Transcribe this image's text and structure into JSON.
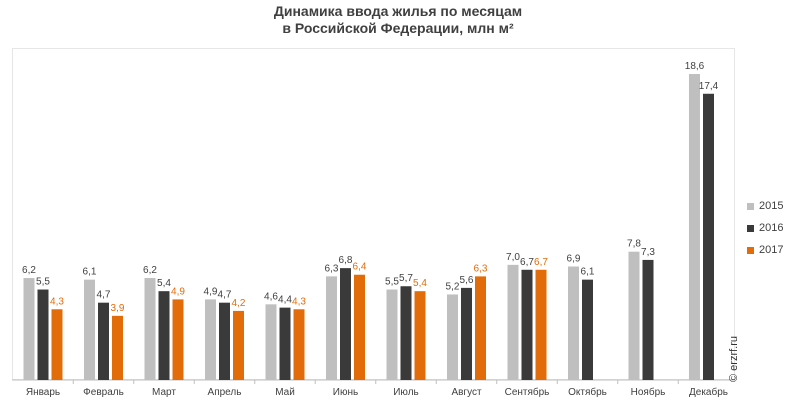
{
  "chart_data": {
    "type": "bar",
    "title_line1": "Динамика ввода жилья по месяцам",
    "title_line2": "в Российской  Федерации, млн м²",
    "categories": [
      "Январь",
      "Февраль",
      "Март",
      "Апрель",
      "Май",
      "Июнь",
      "Июль",
      "Август",
      "Сентябрь",
      "Октябрь",
      "Ноябрь",
      "Декабрь"
    ],
    "series": [
      {
        "name": "2015",
        "color": "#bfbfbf",
        "label_color": "#404040",
        "values": [
          6.2,
          6.1,
          6.2,
          4.9,
          4.6,
          6.3,
          5.5,
          5.2,
          7.0,
          6.9,
          7.8,
          18.6
        ],
        "labels": [
          "6,2",
          "6,1",
          "6,2",
          "4,9",
          "4,6",
          "6,3",
          "5,5",
          "5,2",
          "7,0",
          "6,9",
          "7,8",
          "18,6"
        ]
      },
      {
        "name": "2016",
        "color": "#3a3a3a",
        "label_color": "#404040",
        "values": [
          5.5,
          4.7,
          5.4,
          4.7,
          4.4,
          6.8,
          5.7,
          5.6,
          6.7,
          6.1,
          7.3,
          17.4
        ],
        "labels": [
          "5,5",
          "4,7",
          "5,4",
          "4,7",
          "4,4",
          "6,8",
          "5,7",
          "5,6",
          "6,7",
          "6,1",
          "7,3",
          "17,4"
        ]
      },
      {
        "name": "2017",
        "color": "#e36c0a",
        "label_color": "#e36c0a",
        "values": [
          4.3,
          3.9,
          4.9,
          4.2,
          4.3,
          6.4,
          5.4,
          6.3,
          6.7,
          null,
          null,
          null
        ],
        "labels": [
          "4,3",
          "3,9",
          "4,9",
          "4,2",
          "4,3",
          "6,4",
          "5,4",
          "6,3",
          "6,7",
          "",
          "",
          ""
        ]
      }
    ],
    "ylim": [
      0,
      20
    ],
    "legend_position": "right",
    "grid": false
  },
  "watermark": "© erzrf.ru"
}
